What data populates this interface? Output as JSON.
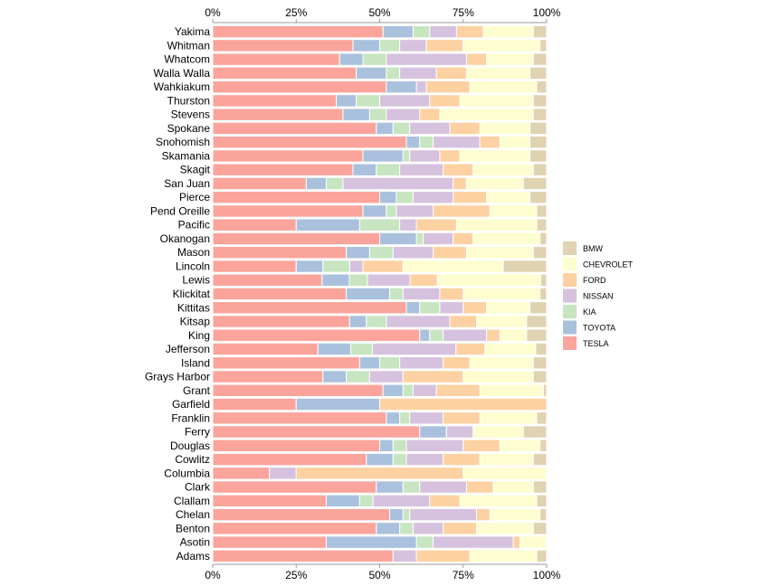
{
  "chart_data": {
    "type": "bar",
    "orientation": "horizontal",
    "stacked": true,
    "normalized": true,
    "title": "",
    "xlabel": "",
    "ylabel": "",
    "xlim": [
      0,
      100
    ],
    "x_ticks": [
      "0%",
      "25%",
      "50%",
      "75%",
      "100%"
    ],
    "grid": false,
    "legend_position": "right",
    "categories": [
      "Yakima",
      "Whitman",
      "Whatcom",
      "Walla Walla",
      "Wahkiakum",
      "Thurston",
      "Stevens",
      "Spokane",
      "Snohomish",
      "Skamania",
      "Skagit",
      "San Juan",
      "Pierce",
      "Pend Oreille",
      "Pacific",
      "Okanogan",
      "Mason",
      "Lincoln",
      "Lewis",
      "Klickitat",
      "Kittitas",
      "Kitsap",
      "King",
      "Jefferson",
      "Island",
      "Grays Harbor",
      "Grant",
      "Garfield",
      "Franklin",
      "Ferry",
      "Douglas",
      "Cowlitz",
      "Columbia",
      "Clark",
      "Clallam",
      "Chelan",
      "Benton",
      "Asotin",
      "Adams"
    ],
    "series": [
      {
        "name": "TESLA",
        "color": "#fba49c",
        "values": [
          51,
          42,
          38,
          43,
          52,
          37,
          39,
          49,
          58,
          45,
          42,
          28,
          50,
          45,
          25,
          50,
          40,
          25,
          36,
          40,
          58,
          41,
          62,
          29,
          44,
          33,
          51,
          25,
          52,
          62,
          50,
          46,
          17,
          49,
          34,
          53,
          49,
          34,
          54
        ]
      },
      {
        "name": "TOYOTA",
        "color": "#a9c1dd",
        "values": [
          9,
          8,
          7,
          9,
          9,
          6,
          8,
          5,
          4,
          12,
          7,
          6,
          5,
          7,
          19,
          11,
          7,
          8,
          9,
          13,
          4,
          5,
          3,
          9,
          6,
          7,
          6,
          25,
          4,
          8,
          4,
          8,
          0,
          8,
          10,
          4,
          7,
          27,
          0
        ]
      },
      {
        "name": "KIA",
        "color": "#c7e5c0",
        "values": [
          5,
          6,
          7,
          4,
          0,
          7,
          5,
          5,
          4,
          2,
          7,
          5,
          5,
          3,
          12,
          2,
          7,
          8,
          6,
          4,
          6,
          6,
          4,
          6,
          6,
          7,
          3,
          0,
          3,
          0,
          4,
          4,
          0,
          5,
          4,
          2,
          4,
          5,
          0
        ]
      },
      {
        "name": "NISSAN",
        "color": "#d6c2de",
        "values": [
          8,
          8,
          24,
          11,
          3,
          15,
          10,
          12,
          14,
          9,
          13,
          33,
          12,
          11,
          5,
          9,
          12,
          4,
          14,
          11,
          7,
          19,
          13,
          23,
          13,
          10,
          7,
          0,
          10,
          8,
          17,
          11,
          8,
          14,
          17,
          20,
          9,
          24,
          7
        ]
      },
      {
        "name": "FORD",
        "color": "#fdd1a1",
        "values": [
          8,
          11,
          6,
          9,
          13,
          9,
          6,
          9,
          6,
          6,
          9,
          4,
          10,
          17,
          12,
          6,
          10,
          12,
          9,
          7,
          7,
          8,
          4,
          8,
          8,
          18,
          13,
          50,
          11,
          0,
          11,
          11,
          50,
          8,
          9,
          4,
          10,
          2,
          16
        ]
      },
      {
        "name": "CHEVROLET",
        "color": "#fefdcf",
        "values": [
          15,
          23,
          14,
          19,
          20,
          22,
          28,
          15,
          9,
          21,
          18,
          17,
          13,
          14,
          24,
          20,
          20,
          30,
          34,
          23,
          13,
          15,
          8,
          14,
          19,
          21,
          19,
          0,
          17,
          15,
          12,
          16,
          25,
          12,
          23,
          15,
          17,
          8,
          20
        ]
      },
      {
        "name": "BMW",
        "color": "#e0d3b2",
        "values": [
          4,
          2,
          4,
          5,
          3,
          4,
          4,
          5,
          5,
          5,
          4,
          7,
          5,
          3,
          3,
          2,
          4,
          13,
          2,
          2,
          5,
          6,
          6,
          3,
          4,
          4,
          1,
          0,
          3,
          7,
          2,
          4,
          0,
          4,
          3,
          2,
          4,
          0,
          3
        ]
      }
    ]
  }
}
